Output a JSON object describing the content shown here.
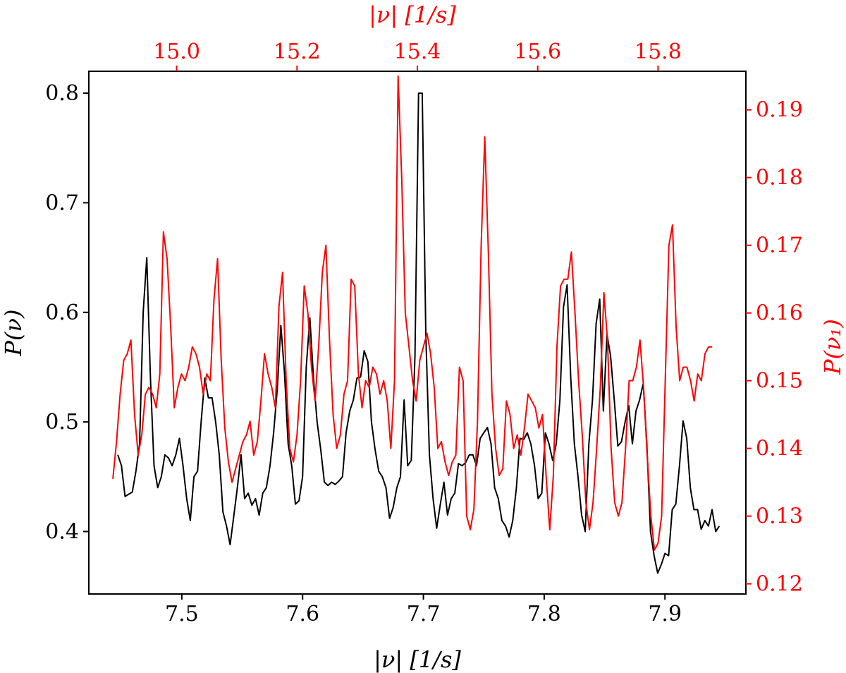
{
  "chart_data": {
    "type": "line",
    "title": "",
    "xlabel": "|ν| [1/s]",
    "ylabel": "P(ν)",
    "x2label": "|ν| [1/s]",
    "y2label": "P(ν₁)",
    "xlim": [
      7.423,
      7.967
    ],
    "ylim": [
      0.343,
      0.82
    ],
    "x2lim": [
      14.854,
      15.946
    ],
    "y2lim": [
      0.1185,
      0.1957
    ],
    "xticks": [
      "7.5",
      "7.6",
      "7.7",
      "7.8",
      "7.9"
    ],
    "yticks": [
      "0.4",
      "0.5",
      "0.6",
      "0.7",
      "0.8"
    ],
    "x2ticks": [
      "15.0",
      "15.2",
      "15.4",
      "15.6",
      "15.8"
    ],
    "y2ticks": [
      "0.12",
      "0.13",
      "0.14",
      "0.15",
      "0.16",
      "0.17",
      "0.18",
      "0.19"
    ],
    "grid": false,
    "legend": "none",
    "colors": {
      "primary": "#000000",
      "secondary": "#ff0000"
    },
    "series": [
      {
        "axes": "bottom-left",
        "color": "#000000",
        "x": [
          7.447,
          7.45,
          7.453,
          7.456,
          7.459,
          7.462,
          7.465,
          7.468,
          7.471,
          7.474,
          7.477,
          7.48,
          7.483,
          7.486,
          7.489,
          7.492,
          7.495,
          7.498,
          7.501,
          7.504,
          7.507,
          7.51,
          7.513,
          7.516,
          7.519,
          7.522,
          7.525,
          7.528,
          7.531,
          7.534,
          7.537,
          7.54,
          7.543,
          7.546,
          7.549,
          7.552,
          7.555,
          7.558,
          7.561,
          7.564,
          7.567,
          7.57,
          7.573,
          7.576,
          7.579,
          7.582,
          7.585,
          7.588,
          7.591,
          7.594,
          7.597,
          7.6,
          7.603,
          7.606,
          7.609,
          7.612,
          7.615,
          7.618,
          7.621,
          7.624,
          7.627,
          7.63,
          7.633,
          7.636,
          7.639,
          7.642,
          7.645,
          7.648,
          7.651,
          7.654,
          7.657,
          7.66,
          7.663,
          7.666,
          7.669,
          7.672,
          7.675,
          7.678,
          7.681,
          7.684,
          7.687,
          7.69,
          7.693,
          7.696,
          7.699,
          7.702,
          7.705,
          7.708,
          7.711,
          7.714,
          7.717,
          7.72,
          7.723,
          7.726,
          7.729,
          7.732,
          7.735,
          7.738,
          7.741,
          7.744,
          7.747,
          7.75,
          7.753,
          7.756,
          7.759,
          7.762,
          7.765,
          7.768,
          7.771,
          7.774,
          7.777,
          7.78,
          7.783,
          7.786,
          7.789,
          7.792,
          7.795,
          7.798,
          7.801,
          7.804,
          7.807,
          7.81,
          7.813,
          7.816,
          7.819,
          7.822,
          7.825,
          7.828,
          7.831,
          7.834,
          7.837,
          7.84,
          7.843,
          7.846,
          7.849,
          7.852,
          7.855,
          7.858,
          7.861,
          7.864,
          7.867,
          7.87,
          7.873,
          7.876,
          7.879,
          7.882,
          7.885,
          7.888,
          7.891,
          7.894,
          7.897,
          7.9,
          7.903,
          7.906,
          7.909,
          7.912,
          7.915,
          7.918,
          7.921,
          7.924,
          7.927,
          7.93,
          7.933,
          7.936,
          7.939,
          7.942,
          7.945
        ],
        "y": [
          0.47,
          0.46,
          0.432,
          0.434,
          0.436,
          0.455,
          0.48,
          0.6,
          0.65,
          0.54,
          0.46,
          0.44,
          0.45,
          0.47,
          0.467,
          0.46,
          0.47,
          0.485,
          0.46,
          0.43,
          0.41,
          0.45,
          0.455,
          0.5,
          0.54,
          0.522,
          0.522,
          0.5,
          0.47,
          0.418,
          0.405,
          0.388,
          0.414,
          0.44,
          0.47,
          0.43,
          0.435,
          0.424,
          0.43,
          0.415,
          0.435,
          0.44,
          0.46,
          0.49,
          0.53,
          0.588,
          0.545,
          0.48,
          0.46,
          0.425,
          0.428,
          0.45,
          0.55,
          0.595,
          0.54,
          0.5,
          0.475,
          0.445,
          0.442,
          0.445,
          0.443,
          0.446,
          0.45,
          0.49,
          0.51,
          0.52,
          0.54,
          0.541,
          0.565,
          0.555,
          0.5,
          0.475,
          0.455,
          0.45,
          0.44,
          0.412,
          0.422,
          0.44,
          0.45,
          0.52,
          0.46,
          0.465,
          0.56,
          0.8,
          0.8,
          0.58,
          0.47,
          0.43,
          0.403,
          0.425,
          0.445,
          0.415,
          0.43,
          0.435,
          0.462,
          0.46,
          0.463,
          0.47,
          0.47,
          0.46,
          0.485,
          0.49,
          0.495,
          0.48,
          0.44,
          0.43,
          0.41,
          0.405,
          0.395,
          0.41,
          0.44,
          0.485,
          0.484,
          0.49,
          0.48,
          0.46,
          0.43,
          0.435,
          0.49,
          0.48,
          0.465,
          0.48,
          0.52,
          0.605,
          0.625,
          0.54,
          0.48,
          0.45,
          0.415,
          0.4,
          0.48,
          0.52,
          0.59,
          0.612,
          0.51,
          0.58,
          0.56,
          0.52,
          0.478,
          0.482,
          0.5,
          0.515,
          0.48,
          0.51,
          0.52,
          0.535,
          0.48,
          0.4,
          0.378,
          0.362,
          0.37,
          0.38,
          0.378,
          0.42,
          0.425,
          0.46,
          0.501,
          0.485,
          0.44,
          0.42,
          0.42,
          0.402,
          0.41,
          0.405,
          0.42,
          0.4,
          0.405
        ]
      },
      {
        "axes": "top-right",
        "color": "#ff0000",
        "x": [
          14.894,
          14.9,
          14.906,
          14.912,
          14.918,
          14.924,
          14.93,
          14.936,
          14.942,
          14.948,
          14.954,
          14.96,
          14.966,
          14.972,
          14.978,
          14.984,
          14.99,
          14.996,
          15.002,
          15.008,
          15.014,
          15.02,
          15.026,
          15.032,
          15.038,
          15.044,
          15.05,
          15.056,
          15.062,
          15.068,
          15.074,
          15.08,
          15.086,
          15.092,
          15.098,
          15.104,
          15.11,
          15.116,
          15.122,
          15.128,
          15.134,
          15.14,
          15.146,
          15.152,
          15.158,
          15.164,
          15.17,
          15.176,
          15.182,
          15.188,
          15.194,
          15.2,
          15.206,
          15.212,
          15.218,
          15.224,
          15.23,
          15.236,
          15.242,
          15.248,
          15.254,
          15.26,
          15.266,
          15.272,
          15.278,
          15.284,
          15.29,
          15.296,
          15.302,
          15.308,
          15.314,
          15.32,
          15.326,
          15.332,
          15.338,
          15.344,
          15.35,
          15.356,
          15.362,
          15.368,
          15.374,
          15.38,
          15.386,
          15.392,
          15.398,
          15.404,
          15.41,
          15.416,
          15.422,
          15.428,
          15.434,
          15.44,
          15.446,
          15.452,
          15.458,
          15.464,
          15.47,
          15.476,
          15.482,
          15.488,
          15.494,
          15.5,
          15.506,
          15.512,
          15.518,
          15.524,
          15.53,
          15.536,
          15.542,
          15.548,
          15.554,
          15.56,
          15.566,
          15.572,
          15.578,
          15.584,
          15.59,
          15.596,
          15.602,
          15.608,
          15.614,
          15.62,
          15.626,
          15.632,
          15.638,
          15.644,
          15.65,
          15.656,
          15.662,
          15.668,
          15.674,
          15.68,
          15.686,
          15.692,
          15.698,
          15.704,
          15.71,
          15.716,
          15.722,
          15.728,
          15.734,
          15.74,
          15.746,
          15.752,
          15.758,
          15.764,
          15.77,
          15.776,
          15.782,
          15.788,
          15.794,
          15.8,
          15.806,
          15.812,
          15.818,
          15.824,
          15.83,
          15.836,
          15.842,
          15.848,
          15.854,
          15.86,
          15.866,
          15.872,
          15.878,
          15.884,
          15.89
        ],
        "y": [
          0.1355,
          0.141,
          0.148,
          0.153,
          0.154,
          0.156,
          0.145,
          0.139,
          0.142,
          0.148,
          0.149,
          0.148,
          0.146,
          0.151,
          0.172,
          0.168,
          0.158,
          0.146,
          0.149,
          0.151,
          0.15,
          0.152,
          0.155,
          0.154,
          0.152,
          0.148,
          0.151,
          0.15,
          0.162,
          0.168,
          0.153,
          0.143,
          0.138,
          0.135,
          0.137,
          0.139,
          0.141,
          0.142,
          0.144,
          0.139,
          0.141,
          0.147,
          0.154,
          0.151,
          0.149,
          0.146,
          0.161,
          0.166,
          0.15,
          0.14,
          0.138,
          0.142,
          0.15,
          0.164,
          0.16,
          0.152,
          0.147,
          0.155,
          0.166,
          0.17,
          0.156,
          0.145,
          0.14,
          0.142,
          0.148,
          0.15,
          0.165,
          0.164,
          0.151,
          0.146,
          0.15,
          0.149,
          0.152,
          0.151,
          0.148,
          0.15,
          0.147,
          0.14,
          0.15,
          0.195,
          0.18,
          0.16,
          0.155,
          0.15,
          0.147,
          0.153,
          0.155,
          0.157,
          0.154,
          0.149,
          0.14,
          0.141,
          0.138,
          0.136,
          0.138,
          0.139,
          0.152,
          0.15,
          0.13,
          0.128,
          0.131,
          0.144,
          0.17,
          0.186,
          0.169,
          0.148,
          0.14,
          0.136,
          0.137,
          0.147,
          0.145,
          0.14,
          0.142,
          0.139,
          0.143,
          0.148,
          0.147,
          0.146,
          0.143,
          0.145,
          0.136,
          0.128,
          0.136,
          0.155,
          0.164,
          0.165,
          0.165,
          0.169,
          0.16,
          0.15,
          0.142,
          0.132,
          0.128,
          0.132,
          0.14,
          0.149,
          0.163,
          0.156,
          0.14,
          0.132,
          0.13,
          0.132,
          0.14,
          0.15,
          0.15,
          0.152,
          0.156,
          0.149,
          0.139,
          0.13,
          0.125,
          0.126,
          0.13,
          0.15,
          0.17,
          0.173,
          0.158,
          0.15,
          0.152,
          0.152,
          0.15,
          0.147,
          0.151,
          0.15,
          0.154,
          0.155,
          0.155
        ]
      }
    ]
  }
}
